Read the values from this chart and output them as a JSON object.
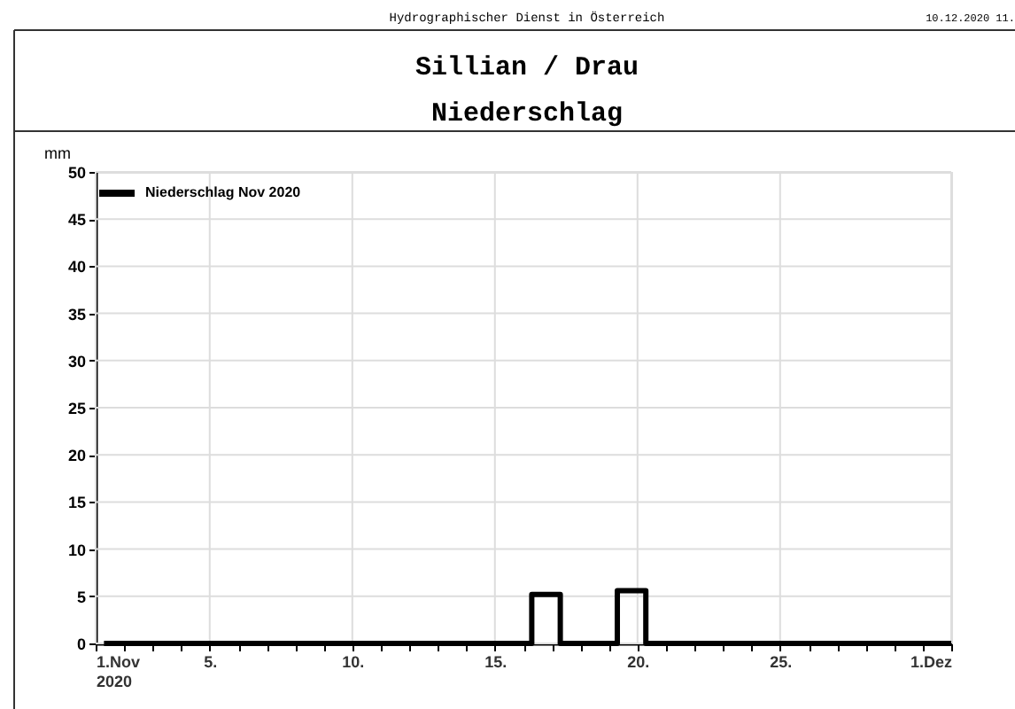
{
  "chart_data": {
    "type": "step",
    "title": "Sillian / Drau",
    "subtitle": "Niederschlag",
    "ylabel": "mm",
    "annotations": [
      "Hydrographischer Dienst in Österreich",
      "10.12.2020 11."
    ],
    "series": [
      {
        "name": "Niederschlag Nov 2020",
        "color": "#000000",
        "x": [
          "2020-11-01T07:00",
          "2020-11-02T07:00",
          "2020-11-03T07:00",
          "2020-11-04T07:00",
          "2020-11-05T07:00",
          "2020-11-06T07:00",
          "2020-11-07T07:00",
          "2020-11-08T07:00",
          "2020-11-09T07:00",
          "2020-11-10T07:00",
          "2020-11-11T07:00",
          "2020-11-12T07:00",
          "2020-11-13T07:00",
          "2020-11-14T07:00",
          "2020-11-15T07:00",
          "2020-11-16T07:00",
          "2020-11-17T07:00",
          "2020-11-18T07:00",
          "2020-11-19T07:00",
          "2020-11-20T07:00",
          "2020-11-21T07:00",
          "2020-11-22T07:00",
          "2020-11-23T07:00",
          "2020-11-24T07:00",
          "2020-11-25T07:00",
          "2020-11-26T07:00",
          "2020-11-27T07:00",
          "2020-11-28T07:00",
          "2020-11-29T07:00",
          "2020-11-30T07:00",
          "2020-12-01"
        ],
        "values": [
          0,
          0,
          0,
          0,
          0,
          0,
          0,
          0,
          0,
          0,
          0,
          0,
          0,
          0,
          0,
          5.2,
          0,
          0,
          5.6,
          0,
          0,
          0,
          0,
          0,
          0,
          0,
          0,
          0,
          0,
          0,
          0
        ]
      }
    ],
    "xlim": [
      "2020-11-01",
      "2020-12-01"
    ],
    "xticks": [
      {
        "value": "2020-11-01",
        "label": "1.Nov\n2020"
      },
      {
        "value": "2020-11-02",
        "label": null
      },
      {
        "value": "2020-11-03",
        "label": null
      },
      {
        "value": "2020-11-04",
        "label": null
      },
      {
        "value": "2020-11-05",
        "label": "5."
      },
      {
        "value": "2020-11-06",
        "label": null
      },
      {
        "value": "2020-11-07",
        "label": null
      },
      {
        "value": "2020-11-08",
        "label": null
      },
      {
        "value": "2020-11-09",
        "label": null
      },
      {
        "value": "2020-11-10",
        "label": "10."
      },
      {
        "value": "2020-11-11",
        "label": null
      },
      {
        "value": "2020-11-12",
        "label": null
      },
      {
        "value": "2020-11-13",
        "label": null
      },
      {
        "value": "2020-11-14",
        "label": null
      },
      {
        "value": "2020-11-15",
        "label": "15."
      },
      {
        "value": "2020-11-16",
        "label": null
      },
      {
        "value": "2020-11-17",
        "label": null
      },
      {
        "value": "2020-11-18",
        "label": null
      },
      {
        "value": "2020-11-19",
        "label": null
      },
      {
        "value": "2020-11-20",
        "label": "20."
      },
      {
        "value": "2020-11-21",
        "label": null
      },
      {
        "value": "2020-11-22",
        "label": null
      },
      {
        "value": "2020-11-23",
        "label": null
      },
      {
        "value": "2020-11-24",
        "label": null
      },
      {
        "value": "2020-11-25",
        "label": "25."
      },
      {
        "value": "2020-11-26",
        "label": null
      },
      {
        "value": "2020-11-27",
        "label": null
      },
      {
        "value": "2020-11-28",
        "label": null
      },
      {
        "value": "2020-11-29",
        "label": null
      },
      {
        "value": "2020-11-30",
        "label": null
      },
      {
        "value": "2020-12-01",
        "label": "1.Dez"
      }
    ],
    "ylim": [
      0,
      50
    ],
    "yticks": [
      0,
      5,
      10,
      15,
      20,
      25,
      30,
      35,
      40,
      45,
      50
    ],
    "grid": true,
    "legend": "top left",
    "line_style": "solid",
    "marker": "none"
  }
}
